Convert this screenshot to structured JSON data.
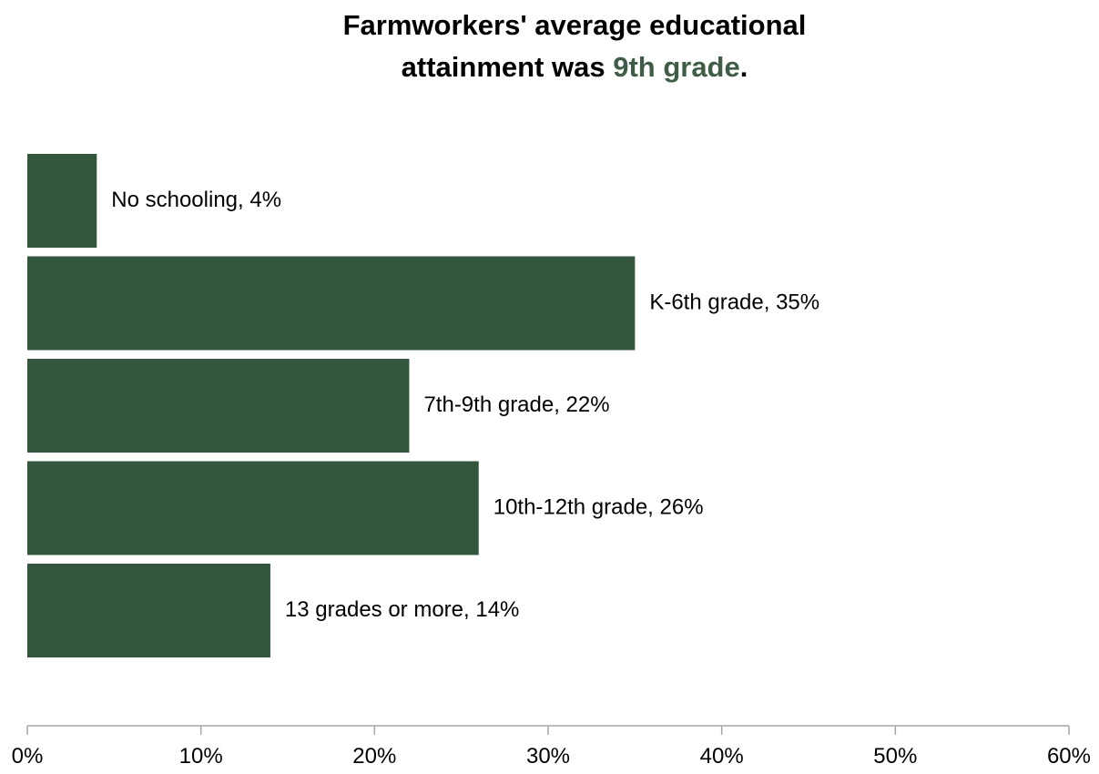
{
  "title": {
    "line1": "Farmworkers' average educational",
    "line2_prefix": "attainment was ",
    "line2_highlight": "9th grade",
    "line2_suffix": "."
  },
  "colors": {
    "bar": "#33563d",
    "highlight": "#3f5d46",
    "axis": "#a6a6a6"
  },
  "chart_data": {
    "type": "bar",
    "orientation": "horizontal",
    "categories": [
      "No schooling",
      "K-6th grade",
      "7th-9th grade",
      "10th-12th grade",
      "13 grades or more"
    ],
    "values": [
      4,
      35,
      22,
      26,
      14
    ],
    "data_labels": [
      "No schooling, 4%",
      "K-6th grade, 35%",
      "7th-9th grade, 22%",
      "10th-12th grade, 26%",
      "13 grades or more, 14%"
    ],
    "xlim": [
      0,
      60
    ],
    "x_ticks": [
      0,
      10,
      20,
      30,
      40,
      50,
      60
    ],
    "x_tick_labels": [
      "0%",
      "10%",
      "20%",
      "30%",
      "40%",
      "50%",
      "60%"
    ],
    "grid": false,
    "legend": "none"
  }
}
